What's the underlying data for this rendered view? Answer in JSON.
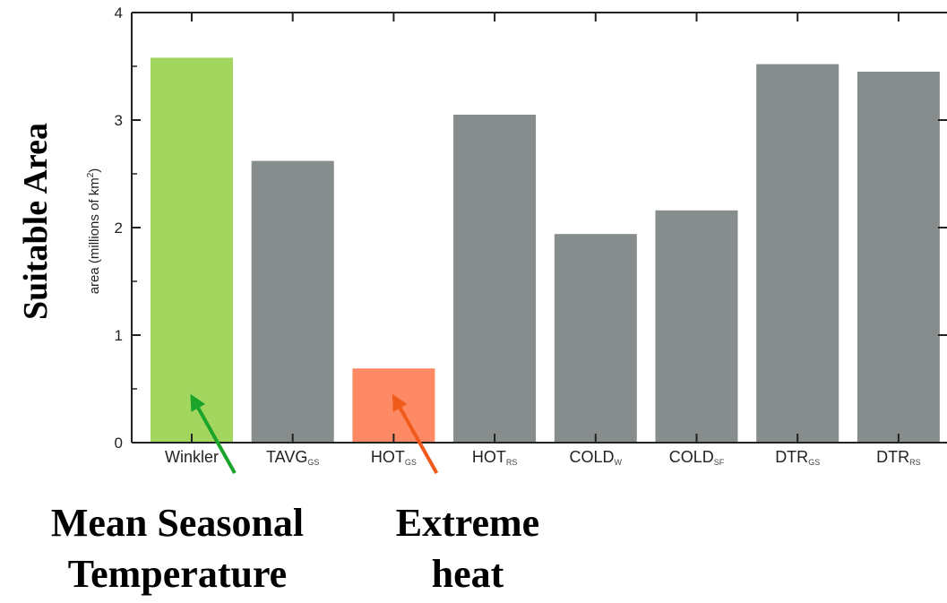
{
  "chart_data": {
    "type": "bar",
    "categories": [
      {
        "main": "Winkler",
        "sub": ""
      },
      {
        "main": "TAVG",
        "sub": "GS"
      },
      {
        "main": "HOT",
        "sub": "GS"
      },
      {
        "main": "HOT",
        "sub": "RS"
      },
      {
        "main": "COLD",
        "sub": "W"
      },
      {
        "main": "COLD",
        "sub": "SF"
      },
      {
        "main": "DTR",
        "sub": "GS"
      },
      {
        "main": "DTR",
        "sub": "RS"
      }
    ],
    "values": [
      3.58,
      2.62,
      0.69,
      3.05,
      1.94,
      2.16,
      3.52,
      3.45
    ],
    "bar_colors": [
      "#a3d65f",
      "#878c8c",
      "#fd8a64",
      "#878c8c",
      "#878c8c",
      "#878c8c",
      "#878c8c",
      "#878c8c"
    ],
    "ylim": [
      0,
      4
    ],
    "yticks": [
      "0",
      "1",
      "2",
      "3",
      "4"
    ],
    "ylabel": {
      "prefix": "area (millions of km",
      "sup": "2",
      "suffix": ")"
    },
    "ylabel_overlay": "Suitable Area",
    "grid": false,
    "annotations": [
      {
        "target_index": 0,
        "lines": [
          "Mean Seasonal",
          "Temperature"
        ],
        "arrow_color": "#1aa52a"
      },
      {
        "target_index": 2,
        "lines": [
          "Extreme",
          "heat"
        ],
        "arrow_color": "#f05a1a"
      }
    ]
  }
}
